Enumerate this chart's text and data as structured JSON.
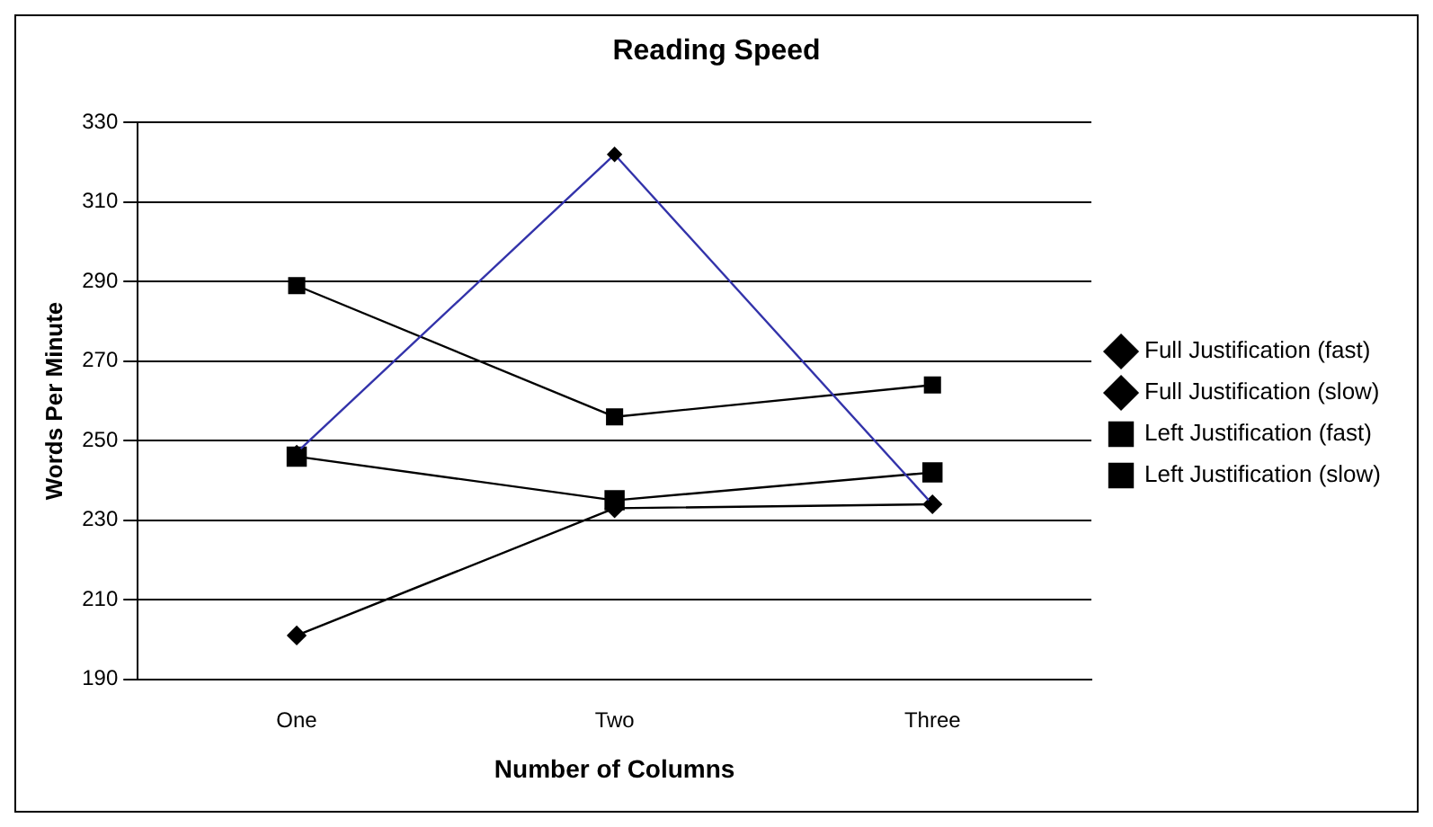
{
  "chart_data": {
    "type": "line",
    "title": "Reading Speed",
    "xlabel": "Number of Columns",
    "ylabel": "Words Per Minute",
    "categories": [
      "One",
      "Two",
      "Three"
    ],
    "series": [
      {
        "name": "Full Justification (fast)",
        "color": "#3333aa",
        "marker": "diamond",
        "values": [
          247,
          322,
          234
        ]
      },
      {
        "name": "Full Justification (slow)",
        "color": "#000000",
        "marker": "diamond",
        "values": [
          201,
          233,
          234
        ]
      },
      {
        "name": "Left Justification (fast)",
        "color": "#000000",
        "marker": "square",
        "values": [
          289,
          256,
          264
        ]
      },
      {
        "name": "Left Justification (slow)",
        "color": "#000000",
        "marker": "square",
        "values": [
          246,
          235,
          242
        ]
      }
    ],
    "ylim": [
      190,
      330
    ],
    "yticks": [
      190,
      210,
      230,
      250,
      270,
      290,
      310,
      330
    ],
    "grid": "y",
    "legend": "right",
    "line_style": "solid"
  }
}
